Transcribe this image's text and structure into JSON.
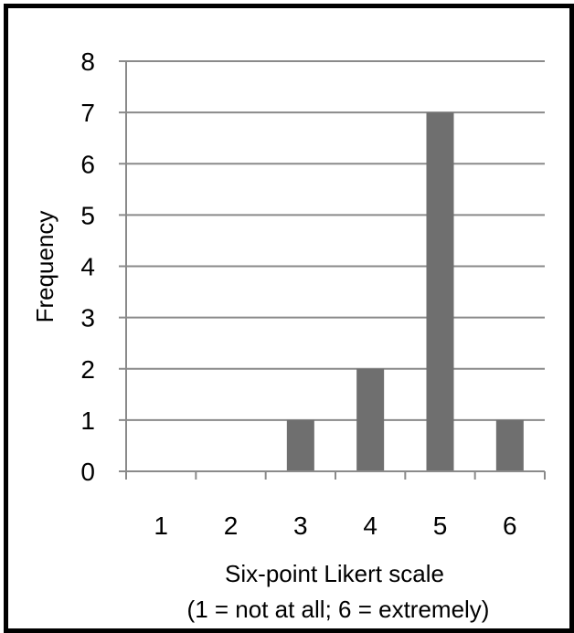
{
  "chart_data": {
    "type": "bar",
    "title": "",
    "categories": [
      "1",
      "2",
      "3",
      "4",
      "5",
      "6"
    ],
    "values": [
      0,
      0,
      1,
      2,
      7,
      1
    ],
    "xlabel_line1": "Six-point Likert scale",
    "xlabel_line2": "(1 = not at all; 6 = extremely)",
    "ylabel": "Frequency",
    "ylim": [
      0,
      8
    ],
    "yticks": [
      "0",
      "1",
      "2",
      "3",
      "4",
      "5",
      "6",
      "7",
      "8"
    ],
    "grid": true,
    "legend": "none",
    "bar_color": "#6f6f6f",
    "grid_color": "#8a8a8a"
  }
}
